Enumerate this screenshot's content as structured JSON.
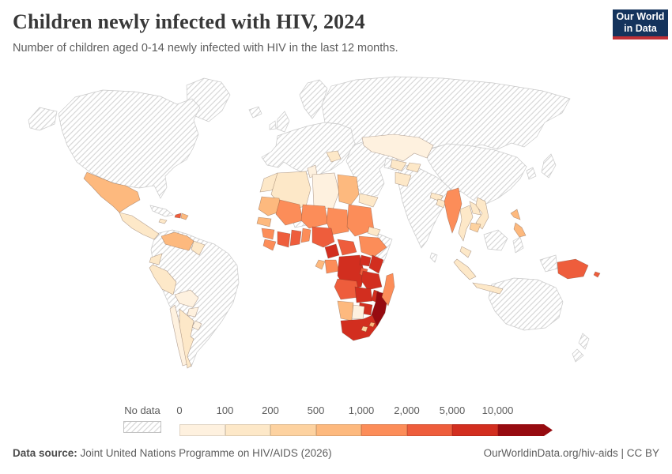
{
  "header": {
    "title": "Children newly infected with HIV, 2024",
    "subtitle": "Number of children aged 0-14 newly infected with HIV in the last 12 months.",
    "logo": {
      "line1": "Our World",
      "line2": "in Data",
      "bg": "#14335c",
      "accent": "#bf3036"
    }
  },
  "legend": {
    "no_data_label": "No data",
    "bin_labels": [
      "0",
      "100",
      "200",
      "500",
      "1,000",
      "2,000",
      "5,000",
      "10,000"
    ],
    "bin_colors": [
      "#fef1df",
      "#fde8c8",
      "#fdd2a0",
      "#fdb97e",
      "#fc8d59",
      "#ee5d3c",
      "#d22e1f",
      "#960b10"
    ]
  },
  "footer": {
    "source_label": "Data source:",
    "source_text": " Joint United Nations Programme on HIV/AIDS (2026)",
    "credit": "OurWorldinData.org/hiv-aids | CC BY"
  },
  "chart_data": {
    "type": "choropleth_map",
    "title": "Children newly infected with HIV, 2024",
    "subtitle": "Number of children aged 0-14 newly infected with HIV in the last 12 months.",
    "year": 2024,
    "legend_bins": [
      "0",
      "100",
      "200",
      "500",
      "1,000",
      "2,000",
      "5,000",
      "10,000"
    ],
    "bin_ranges": [
      "0-100",
      "100-200",
      "200-500",
      "500-1,000",
      "1,000-2,000",
      "2,000-5,000",
      "5,000-10,000",
      "10,000+"
    ],
    "bin_colors": [
      "#fef1df",
      "#fde8c8",
      "#fdd2a0",
      "#fdb97e",
      "#fc8d59",
      "#ee5d3c",
      "#d22e1f",
      "#960b10"
    ],
    "no_data_style": "diagonal-hatch",
    "source": "Joint United Nations Programme on HIV/AIDS (2026)",
    "regions": {
      "greenland": {
        "label": "Greenland",
        "bin": "no_data"
      },
      "alaska": {
        "label": "Alaska (United States)",
        "bin": "no_data"
      },
      "canada_usa": {
        "label": "Canada / United States",
        "bin": "no_data"
      },
      "iceland": {
        "label": "Iceland",
        "bin": "no_data"
      },
      "scandinavia": {
        "label": "Scandinavia",
        "bin": "no_data"
      },
      "uk": {
        "label": "United Kingdom",
        "bin": "no_data"
      },
      "ireland": {
        "label": "Ireland",
        "bin": "no_data"
      },
      "europe": {
        "label": "Europe",
        "bin": "no_data"
      },
      "russia": {
        "label": "Russia",
        "bin": "no_data"
      },
      "middle_east": {
        "label": "Middle East (Turkey, Iran, Saudi Arabia)",
        "bin": "no_data"
      },
      "turkmenistan": {
        "label": "Turkmenistan",
        "bin": "no_data"
      },
      "india_pakistan": {
        "label": "India / Pakistan",
        "bin": "no_data"
      },
      "china_mongolia": {
        "label": "China / Mongolia",
        "bin": "no_data"
      },
      "japan": {
        "label": "Japan",
        "bin": "no_data"
      },
      "korea": {
        "label": "Korea",
        "bin": "no_data"
      },
      "australia": {
        "label": "Australia",
        "bin": "no_data"
      },
      "new_zealand": {
        "label": "New Zealand",
        "bin": "no_data"
      },
      "colombia_brazil": {
        "label": "Colombia / Brazil",
        "bin": "no_data"
      },
      "somalia": {
        "label": "Somalia",
        "bin": "no_data"
      },
      "burkina_faso": {
        "label": "Burkina Faso",
        "bin": "no_data"
      },
      "borneo": {
        "label": "Borneo",
        "bin": "no_data"
      },
      "sulawesi": {
        "label": "Sulawesi",
        "bin": "no_data"
      },
      "west_papua": {
        "label": "Western New Guinea",
        "bin": "no_data"
      },
      "sri_lanka": {
        "label": "Sri Lanka",
        "bin": "no_data"
      },
      "cuba": {
        "label": "Cuba",
        "bin": "no_data"
      },
      "mexico": {
        "label": "Mexico",
        "bin": 3
      },
      "central_america": {
        "label": "Central America",
        "bin": 1
      },
      "haiti": {
        "label": "Haiti",
        "bin": 5
      },
      "dominican_republic": {
        "label": "Dominican Republic",
        "bin": 3
      },
      "jamaica": {
        "label": "Jamaica",
        "bin": 1
      },
      "venezuela": {
        "label": "Venezuela",
        "bin": 3
      },
      "guyana_suriname": {
        "label": "Guyana / Suriname",
        "bin": 1
      },
      "ecuador": {
        "label": "Ecuador",
        "bin": 1
      },
      "peru": {
        "label": "Peru",
        "bin": 1
      },
      "bolivia": {
        "label": "Bolivia",
        "bin": 0
      },
      "paraguay": {
        "label": "Paraguay",
        "bin": 0
      },
      "chile": {
        "label": "Chile",
        "bin": 0
      },
      "argentina": {
        "label": "Argentina",
        "bin": 1
      },
      "uruguay": {
        "label": "Uruguay",
        "bin": 0
      },
      "morocco": {
        "label": "Morocco",
        "bin": 1
      },
      "algeria": {
        "label": "Algeria",
        "bin": 1
      },
      "tunisia": {
        "label": "Tunisia",
        "bin": 0
      },
      "libya": {
        "label": "Libya",
        "bin": 0
      },
      "egypt": {
        "label": "Egypt",
        "bin": 3
      },
      "mauritania": {
        "label": "Mauritania",
        "bin": 3
      },
      "mali": {
        "label": "Mali",
        "bin": 4
      },
      "niger": {
        "label": "Niger",
        "bin": 4
      },
      "chad": {
        "label": "Chad",
        "bin": 4
      },
      "sudan": {
        "label": "Sudan",
        "bin": 4
      },
      "eritrea": {
        "label": "Eritrea",
        "bin": 1
      },
      "ethiopia": {
        "label": "Ethiopia",
        "bin": 4
      },
      "senegal": {
        "label": "Senegal",
        "bin": 3
      },
      "guinea": {
        "label": "Guinea",
        "bin": 4
      },
      "sierra_leone_liberia": {
        "label": "Sierra Leone / Liberia",
        "bin": 4
      },
      "cote_divoire": {
        "label": "Cote d'Ivoire",
        "bin": 5
      },
      "ghana": {
        "label": "Ghana",
        "bin": 5
      },
      "togo_benin": {
        "label": "Togo / Benin",
        "bin": 4
      },
      "nigeria": {
        "label": "Nigeria",
        "bin": 5
      },
      "cameroon": {
        "label": "Cameroon",
        "bin": 6
      },
      "central_african_republic": {
        "label": "Central African Republic",
        "bin": 5
      },
      "gabon": {
        "label": "Gabon",
        "bin": 3
      },
      "congo": {
        "label": "Congo",
        "bin": 4
      },
      "drc": {
        "label": "Democratic Republic of Congo",
        "bin": 6
      },
      "uganda": {
        "label": "Uganda",
        "bin": 6
      },
      "kenya": {
        "label": "Kenya",
        "bin": 6
      },
      "rwanda_burundi": {
        "label": "Rwanda / Burundi",
        "bin": 5
      },
      "tanzania": {
        "label": "Tanzania",
        "bin": 6
      },
      "angola": {
        "label": "Angola",
        "bin": 5
      },
      "zambia": {
        "label": "Zambia",
        "bin": 6
      },
      "malawi": {
        "label": "Malawi",
        "bin": 6
      },
      "mozambique": {
        "label": "Mozambique",
        "bin": 7
      },
      "zimbabwe": {
        "label": "Zimbabwe",
        "bin": 6
      },
      "namibia": {
        "label": "Namibia",
        "bin": 3
      },
      "botswana": {
        "label": "Botswana",
        "bin": 0
      },
      "south_africa": {
        "label": "South Africa",
        "bin": 6
      },
      "lesotho": {
        "label": "Lesotho",
        "bin": 2
      },
      "eswatini": {
        "label": "Eswatini",
        "bin": 3
      },
      "madagascar": {
        "label": "Madagascar",
        "bin": 4
      },
      "yemen": {
        "label": "Yemen",
        "bin": 1
      },
      "romania": {
        "label": "Romania",
        "bin": 1
      },
      "kazakhstan": {
        "label": "Kazakhstan",
        "bin": 0
      },
      "uzbekistan": {
        "label": "Uzbekistan",
        "bin": 1
      },
      "kyrgyzstan_tajikistan": {
        "label": "Kyrgyzstan / Tajikistan",
        "bin": 1
      },
      "afghanistan": {
        "label": "Afghanistan",
        "bin": 1
      },
      "nepal": {
        "label": "Nepal",
        "bin": 1
      },
      "bangladesh": {
        "label": "Bangladesh",
        "bin": 1
      },
      "myanmar": {
        "label": "Myanmar",
        "bin": 4
      },
      "thailand": {
        "label": "Thailand",
        "bin": 1
      },
      "laos": {
        "label": "Laos",
        "bin": 1
      },
      "vietnam": {
        "label": "Vietnam",
        "bin": 1
      },
      "cambodia": {
        "label": "Cambodia",
        "bin": 2
      },
      "malaysia": {
        "label": "Malaysia",
        "bin": 1
      },
      "sumatra": {
        "label": "Indonesia (Sumatra)",
        "bin": 1
      },
      "java": {
        "label": "Indonesia (Java)",
        "bin": 1
      },
      "philippines": {
        "label": "Philippines",
        "bin": 3
      },
      "papua_new_guinea": {
        "label": "Papua New Guinea",
        "bin": 5
      },
      "solomon_islands": {
        "label": "Solomon Islands",
        "bin": 5
      }
    }
  }
}
